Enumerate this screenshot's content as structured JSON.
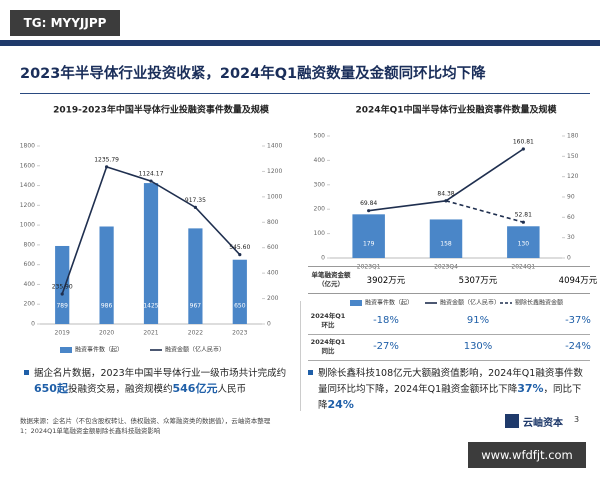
{
  "watermark_top": "TG: MYYJJPP",
  "title": "2023年半导体行业投资收紧，2024年Q1融资数量及金额同环比均下降",
  "chart_data": [
    {
      "type": "combo",
      "title": "2019-2023年中国半导体行业投融资事件数量及规模",
      "categories": [
        "2019",
        "2020",
        "2021",
        "2022",
        "2023"
      ],
      "ylim": [
        0,
        1800
      ],
      "yticks": [
        0,
        200,
        400,
        600,
        800,
        1000,
        1200,
        1400,
        1600,
        1800
      ],
      "y2lim": [
        0,
        1400
      ],
      "y2ticks": [
        0,
        200,
        400,
        600,
        800,
        1000,
        1200,
        1400
      ],
      "series": [
        {
          "name": "融资事件数（起）",
          "kind": "bar",
          "color": "#4a86c8",
          "values": [
            789,
            986,
            1425,
            967,
            650
          ]
        },
        {
          "name": "融资金额（亿人民币）",
          "kind": "line",
          "axis": "y2",
          "color": "#1f2f4f",
          "values": [
            235.9,
            1235.79,
            1124.17,
            917.35,
            545.6
          ],
          "value_labels": [
            "235.90",
            "1235.79",
            "1124.17",
            "917.35",
            "545.60"
          ]
        }
      ]
    },
    {
      "type": "combo",
      "title": "2024年Q1中国半导体行业投融资事件数量及规模",
      "categories": [
        "2023Q1",
        "2023Q4",
        "2024Q1"
      ],
      "ylim": [
        0,
        500
      ],
      "yticks": [
        0,
        100,
        200,
        300,
        400,
        500
      ],
      "y2lim": [
        0,
        180
      ],
      "y2ticks": [
        0,
        30,
        60,
        90,
        120,
        150,
        180
      ],
      "series": [
        {
          "name": "融资事件数（起）",
          "kind": "bar",
          "color": "#4a86c8",
          "values": [
            179,
            158,
            130
          ]
        },
        {
          "name": "融资金额（亿人民币）",
          "kind": "line",
          "axis": "y2",
          "color": "#1f2f4f",
          "values": [
            69.84,
            84.38,
            160.81
          ]
        },
        {
          "name": "剔除长鑫融资金额",
          "kind": "line",
          "axis": "y2",
          "dashed": true,
          "color": "#1f2f4f",
          "values": [
            null,
            84.38,
            52.81
          ],
          "value_labels": [
            null,
            null,
            "52.81"
          ]
        }
      ]
    }
  ],
  "avg_row": {
    "label": "单笔融资金额（亿元）",
    "cells": [
      "3902万元",
      "5307万元",
      "4094万元"
    ]
  },
  "growth": [
    {
      "label": "2024年Q1环比",
      "cells": [
        "-18%",
        "91%",
        "-37%"
      ]
    },
    {
      "label": "2024年Q1同比",
      "cells": [
        "-27%",
        "130%",
        "-24%"
      ]
    }
  ],
  "bullet_left": [
    "据企名片数据，2023年中国半导体行业一级市场共计完成约",
    "650起",
    "投融资交易，融资规模约",
    "546亿元",
    "人民币"
  ],
  "bullet_right": [
    "剔除长鑫科技108亿元大额融资值影响，2024年Q1融资事件数量同环比均下降，2024年Q1融资金额环比下降",
    "37%",
    "，同比下降",
    "24%"
  ],
  "source": [
    "数据来源：企名片（不包含股权转让、债权融资、众筹融资类的数据值），云岫资本整理",
    "1：2024Q1单笔融资金额剔除长鑫科技融资影响"
  ],
  "logo": "云岫资本",
  "page": "3",
  "watermark_bottom": "www.wfdfjt.com"
}
